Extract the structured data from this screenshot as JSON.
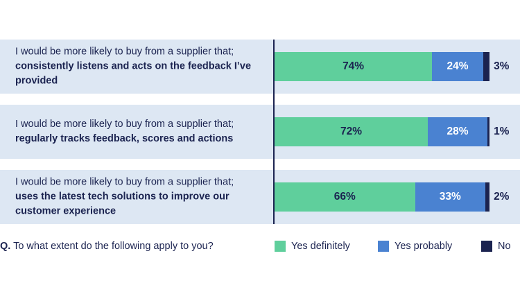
{
  "chart_data": {
    "type": "bar",
    "orientation": "horizontal-stacked",
    "categories": [
      "I would be more likely to buy from a supplier that; consistently listens and acts on the feedback I’ve provided",
      "I would be more likely to buy from a supplier that; regularly tracks feedback, scores and actions",
      "I would be more likely to buy from a supplier that; uses the latest tech solutions to improve our customer experience"
    ],
    "series": [
      {
        "name": "Yes definitely",
        "values": [
          74,
          72,
          66
        ],
        "color": "#5fcf9c"
      },
      {
        "name": "Yes probably",
        "values": [
          24,
          28,
          33
        ],
        "color": "#4a82d1"
      },
      {
        "name": "No",
        "values": [
          3,
          1,
          2
        ],
        "color": "#1b2350"
      }
    ],
    "value_format": "%",
    "legend_placement": "bottom",
    "grid": false
  },
  "rows": [
    {
      "prefix": "I would be more likely to buy from a supplier that;",
      "bold": "consistently listens and acts on the feedback I’ve provided",
      "yes_def": "74%",
      "yes_prob": "24%",
      "no": "3%"
    },
    {
      "prefix": "I would be more likely to buy from a supplier that;",
      "bold": "regularly tracks feedback, scores and actions",
      "yes_def": "72%",
      "yes_prob": "28%",
      "no": "1%"
    },
    {
      "prefix": "I would be more likely to buy from a supplier that;",
      "bold": "uses the latest tech solutions to improve our customer experience",
      "yes_def": "66%",
      "yes_prob": "33%",
      "no": "2%"
    }
  ],
  "question": {
    "prefix": "Q.",
    "text": "To what extent do the following apply to you?"
  },
  "legend": {
    "yes_definitely": "Yes definitely",
    "yes_probably": "Yes probably",
    "no": "No"
  }
}
